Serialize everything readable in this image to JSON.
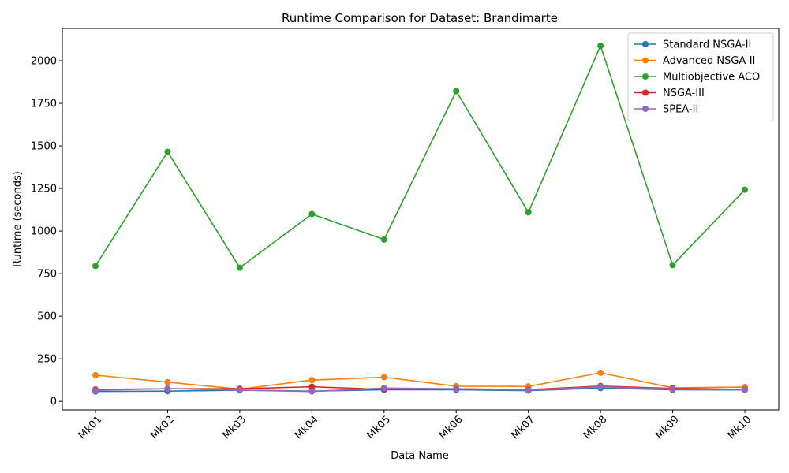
{
  "chart_data": {
    "type": "line",
    "title": "Runtime Comparison for Dataset: Brandimarte",
    "xlabel": "Data Name",
    "ylabel": "Runtime (seconds)",
    "categories": [
      "Mk01",
      "Mk02",
      "Mk03",
      "Mk04",
      "Mk05",
      "Mk06",
      "Mk07",
      "Mk08",
      "Mk09",
      "Mk10"
    ],
    "ylim": [
      -50,
      2190
    ],
    "yticks": [
      0,
      250,
      500,
      750,
      1000,
      1250,
      1500,
      1750,
      2000
    ],
    "grid": false,
    "legend_position": "top-right",
    "series": [
      {
        "name": "Standard NSGA-II",
        "color": "#1f77b4",
        "values": [
          58,
          60,
          66,
          60,
          68,
          68,
          63,
          78,
          68,
          67
        ]
      },
      {
        "name": "Advanced NSGA-II",
        "color": "#ff7f0e",
        "values": [
          154,
          113,
          72,
          125,
          142,
          89,
          88,
          168,
          80,
          84
        ]
      },
      {
        "name": "Multiobjective ACO",
        "color": "#2ca02c",
        "values": [
          795,
          1465,
          785,
          1100,
          950,
          1822,
          1110,
          2088,
          800,
          1243
        ]
      },
      {
        "name": "NSGA-III",
        "color": "#d62728",
        "values": [
          70,
          74,
          74,
          86,
          70,
          74,
          69,
          90,
          76,
          70
        ]
      },
      {
        "name": "SPEA-II",
        "color": "#9467bd",
        "values": [
          64,
          75,
          66,
          58,
          78,
          74,
          66,
          86,
          72,
          68
        ]
      }
    ]
  }
}
